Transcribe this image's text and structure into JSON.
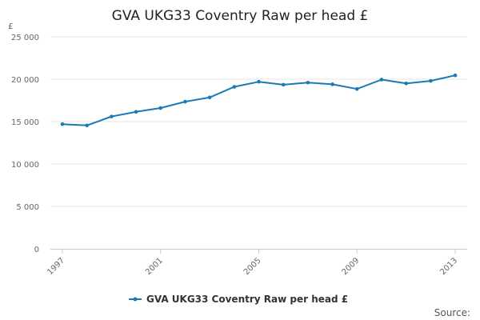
{
  "chart_data": {
    "type": "line",
    "title": "GVA UKG33 Coventry Raw per head £",
    "ylabel": "£",
    "xlabel": "",
    "source_label": "Source:",
    "ylim": [
      0,
      25000
    ],
    "yticks": [
      0,
      5000,
      10000,
      15000,
      20000,
      25000
    ],
    "ytick_labels": [
      "0",
      "5 000",
      "10 000",
      "15 000",
      "20 000",
      "25 000"
    ],
    "xlim": [
      1997,
      2013
    ],
    "xticks": [
      1997,
      2001,
      2005,
      2009,
      2013
    ],
    "xtick_labels": [
      "1997",
      "2001",
      "2005",
      "2009",
      "2013"
    ],
    "grid": true,
    "legend_position": "bottom-center",
    "x": [
      1997,
      1998,
      1999,
      2000,
      2001,
      2002,
      2003,
      2004,
      2005,
      2006,
      2007,
      2008,
      2009,
      2010,
      2011,
      2012,
      2013
    ],
    "series": [
      {
        "name": "GVA UKG33 Coventry Raw per head £",
        "color": "#1a7ab5",
        "values": [
          14700,
          14550,
          15600,
          16150,
          16600,
          17350,
          17850,
          19100,
          19700,
          19350,
          19600,
          19400,
          18850,
          19950,
          19500,
          19800,
          20450
        ]
      }
    ]
  }
}
